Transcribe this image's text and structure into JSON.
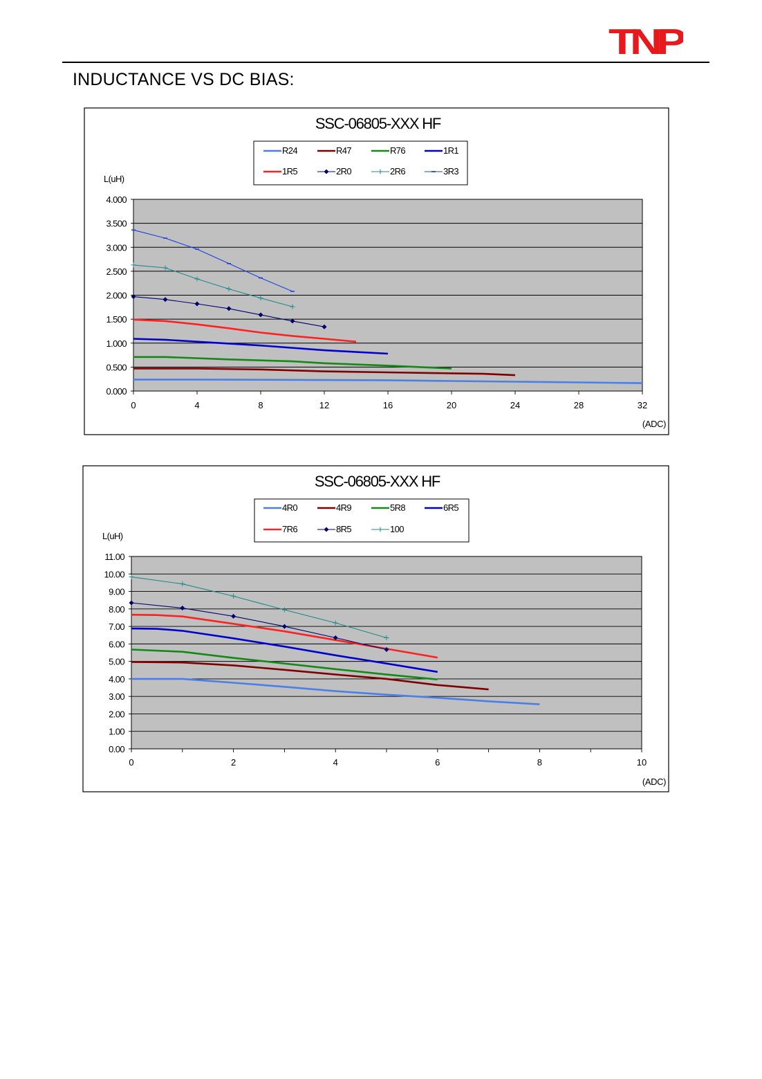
{
  "brand": {
    "logo_text": "TNP",
    "logo_color": "#e8191c"
  },
  "page": {
    "heading": "INDUCTANCE VS DC BIAS:"
  },
  "chart_data": [
    {
      "type": "line",
      "title": "SSC-06805-XXX HF",
      "ylabel": "L(uH)",
      "xlabel": "(ADC)",
      "xlim": [
        0,
        32
      ],
      "ylim": [
        0,
        4
      ],
      "x_ticks": [
        "0",
        "4",
        "8",
        "12",
        "16",
        "20",
        "24",
        "28",
        "32"
      ],
      "y_ticks": [
        "0.000",
        "0.500",
        "1.000",
        "1.500",
        "2.000",
        "2.500",
        "3.000",
        "3.500",
        "4.000"
      ],
      "x_tick_values": [
        0,
        4,
        8,
        12,
        16,
        20,
        24,
        28,
        32
      ],
      "y_tick_values": [
        0,
        0.5,
        1,
        1.5,
        2,
        2.5,
        3,
        3.5,
        4
      ],
      "grid": true,
      "legend_position": "top-center",
      "plot_background": "#c0c0c0",
      "series": [
        {
          "name": "R24",
          "color": "#4a7fe8",
          "marker": "none",
          "x": [
            0,
            4,
            8,
            12,
            16,
            20,
            24,
            28,
            32
          ],
          "y": [
            0.24,
            0.24,
            0.235,
            0.23,
            0.225,
            0.21,
            0.195,
            0.18,
            0.165
          ]
        },
        {
          "name": "R47",
          "color": "#7f0000",
          "marker": "none",
          "x": [
            0,
            4,
            8,
            12,
            16,
            20,
            22,
            24
          ],
          "y": [
            0.47,
            0.47,
            0.45,
            0.41,
            0.39,
            0.37,
            0.36,
            0.33
          ]
        },
        {
          "name": "R76",
          "color": "#138a13",
          "marker": "none",
          "x": [
            0,
            2,
            6,
            10,
            12,
            16,
            20
          ],
          "y": [
            0.71,
            0.71,
            0.66,
            0.62,
            0.58,
            0.53,
            0.47
          ]
        },
        {
          "name": "1R1",
          "color": "#0000d0",
          "marker": "none",
          "x": [
            0,
            2,
            4,
            8,
            12,
            16
          ],
          "y": [
            1.09,
            1.07,
            1.03,
            0.95,
            0.85,
            0.78
          ]
        },
        {
          "name": "1R5",
          "color": "#ff2020",
          "marker": "none",
          "x": [
            0,
            2,
            4,
            6,
            8,
            10,
            12,
            14
          ],
          "y": [
            1.49,
            1.46,
            1.39,
            1.31,
            1.22,
            1.15,
            1.09,
            1.03
          ]
        },
        {
          "name": "2R0",
          "color": "#00006e",
          "marker": "diamond",
          "x": [
            0,
            2,
            4,
            6,
            8,
            10,
            12
          ],
          "y": [
            1.97,
            1.91,
            1.82,
            1.72,
            1.59,
            1.46,
            1.34
          ]
        },
        {
          "name": "2R6",
          "color": "#1f8a8a",
          "marker": "plus",
          "x": [
            0,
            2,
            4,
            6,
            8,
            10
          ],
          "y": [
            2.63,
            2.57,
            2.34,
            2.13,
            1.94,
            1.76
          ]
        },
        {
          "name": "3R3",
          "color": "#1a3fe0",
          "marker": "dash",
          "x": [
            0,
            2,
            4,
            6,
            8,
            10
          ],
          "y": [
            3.36,
            3.19,
            2.96,
            2.66,
            2.36,
            2.08
          ]
        }
      ]
    },
    {
      "type": "line",
      "title": "SSC-06805-XXX HF",
      "ylabel": "L(uH)",
      "xlabel": "(ADC)",
      "xlim": [
        0,
        10
      ],
      "ylim": [
        0,
        11
      ],
      "x_ticks": [
        "0",
        "2",
        "4",
        "6",
        "8",
        "10"
      ],
      "y_ticks": [
        "0.00",
        "1.00",
        "2.00",
        "3.00",
        "4.00",
        "5.00",
        "6.00",
        "7.00",
        "8.00",
        "9.00",
        "10.00",
        "11.00"
      ],
      "x_tick_values": [
        0,
        2,
        4,
        6,
        8,
        10
      ],
      "y_tick_values": [
        0,
        1,
        2,
        3,
        4,
        5,
        6,
        7,
        8,
        9,
        10,
        11
      ],
      "grid": true,
      "legend_position": "top-center",
      "plot_background": "#c0c0c0",
      "series": [
        {
          "name": "4R0",
          "color": "#4a7fe8",
          "marker": "none",
          "x": [
            0,
            1,
            2,
            3,
            4,
            5,
            6,
            7,
            8
          ],
          "y": [
            4.0,
            4.0,
            3.78,
            3.55,
            3.3,
            3.1,
            2.92,
            2.72,
            2.55
          ]
        },
        {
          "name": "4R9",
          "color": "#7f0000",
          "marker": "none",
          "x": [
            0,
            1,
            2,
            3,
            4,
            5,
            6,
            7
          ],
          "y": [
            4.97,
            4.94,
            4.77,
            4.52,
            4.25,
            4.0,
            3.65,
            3.4
          ]
        },
        {
          "name": "5R8",
          "color": "#138a13",
          "marker": "none",
          "x": [
            0,
            1,
            2,
            3,
            4,
            5,
            6
          ],
          "y": [
            5.68,
            5.55,
            5.2,
            4.88,
            4.56,
            4.25,
            3.97
          ]
        },
        {
          "name": "6R5",
          "color": "#0000d0",
          "marker": "none",
          "x": [
            0,
            0.5,
            1,
            2,
            3,
            4,
            5,
            6
          ],
          "y": [
            6.88,
            6.86,
            6.75,
            6.32,
            5.85,
            5.35,
            4.88,
            4.4
          ]
        },
        {
          "name": "7R6",
          "color": "#ff2020",
          "marker": "none",
          "x": [
            0,
            0.5,
            1,
            2,
            3,
            4,
            5,
            6
          ],
          "y": [
            7.67,
            7.65,
            7.57,
            7.15,
            6.72,
            6.22,
            5.72,
            5.22
          ]
        },
        {
          "name": "8R5",
          "color": "#00006e",
          "marker": "diamond",
          "x": [
            0,
            1,
            2,
            3,
            4,
            5
          ],
          "y": [
            8.35,
            8.05,
            7.58,
            7.0,
            6.35,
            5.68
          ]
        },
        {
          "name": "100",
          "color": "#1f8a8a",
          "marker": "plus",
          "x": [
            0,
            1,
            2,
            3,
            4,
            5
          ],
          "y": [
            9.83,
            9.43,
            8.73,
            7.95,
            7.2,
            6.35
          ]
        }
      ]
    }
  ]
}
